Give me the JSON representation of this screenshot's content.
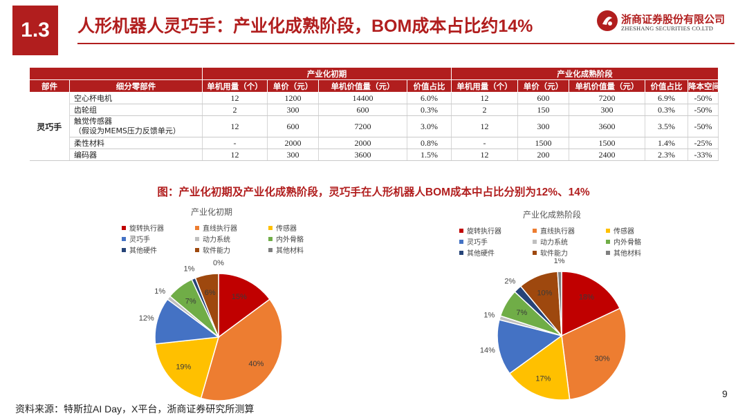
{
  "header": {
    "section": "1.3",
    "title": "人形机器人灵巧手：产业化成熟阶段，BOM成本占比约14%",
    "logo_cn": "浙商证券股份有限公司",
    "logo_en": "ZHESHANG SECURITIES CO.LTD"
  },
  "table": {
    "group_headers": [
      "产业化初期",
      "产业化成熟阶段"
    ],
    "columns": [
      "部件",
      "细分零部件",
      "单机用量（个）",
      "单价（元）",
      "单机价值量（元）",
      "价值占比",
      "单机用量（个）",
      "单价（元）",
      "单机价值量（元）",
      "价值占比",
      "降本空间"
    ],
    "category": "灵巧手",
    "rows": [
      {
        "part": "空心杯电机",
        "cells": [
          "12",
          "1200",
          "14400",
          "6.0%",
          "12",
          "600",
          "7200",
          "6.9%",
          "-50%"
        ]
      },
      {
        "part": "齿轮组",
        "cells": [
          "2",
          "300",
          "600",
          "0.3%",
          "2",
          "150",
          "300",
          "0.3%",
          "-50%"
        ]
      },
      {
        "part": "触觉传感器",
        "part_note": "（假设为MEMS压力反馈单元）",
        "cells": [
          "12",
          "600",
          "7200",
          "3.0%",
          "12",
          "300",
          "3600",
          "3.5%",
          "-50%"
        ]
      },
      {
        "part": "柔性材料",
        "cells": [
          "-",
          "2000",
          "2000",
          "0.8%",
          "-",
          "1500",
          "1500",
          "1.4%",
          "-25%"
        ]
      },
      {
        "part": "编码器",
        "cells": [
          "12",
          "300",
          "3600",
          "1.5%",
          "12",
          "200",
          "2400",
          "2.3%",
          "-33%"
        ]
      }
    ]
  },
  "figure_title": "图：产业化初期及产业化成熟阶段，灵巧手在人形机器人BOM成本中占比分别为12%、14%",
  "chart_data": [
    {
      "type": "pie",
      "title": "产业化初期",
      "legend": [
        "旋转执行器",
        "直线执行器",
        "传感器",
        "灵巧手",
        "动力系统",
        "内外骨骼",
        "其他硬件",
        "软件能力",
        "其他材料"
      ],
      "colors": [
        "#c00000",
        "#ed7d31",
        "#ffc000",
        "#4472c4",
        "#bfbfbf",
        "#70ad47",
        "#264478",
        "#9e480e",
        "#7f7f7f"
      ],
      "values": [
        15,
        40,
        19,
        12,
        1,
        7,
        1,
        6,
        0
      ],
      "labels": [
        "15%",
        "40%",
        "19%",
        "12%",
        "1%",
        "7%",
        "1%",
        "6%",
        "0%"
      ]
    },
    {
      "type": "pie",
      "title": "产业化成熟阶段",
      "legend": [
        "旋转执行器",
        "直线执行器",
        "传感器",
        "灵巧手",
        "动力系统",
        "内外骨骼",
        "其他硬件",
        "软件能力",
        "其他材料"
      ],
      "colors": [
        "#c00000",
        "#ed7d31",
        "#ffc000",
        "#4472c4",
        "#bfbfbf",
        "#70ad47",
        "#264478",
        "#9e480e",
        "#7f7f7f"
      ],
      "values": [
        18,
        30,
        17,
        14,
        1,
        7,
        2,
        10,
        1
      ],
      "labels": [
        "18%",
        "30%",
        "17%",
        "14%",
        "1%",
        "7%",
        "2%",
        "10%",
        "1%"
      ]
    }
  ],
  "footer": {
    "source": "资料来源：特斯拉AI Day，X平台，浙商证券研究所测算",
    "page": "9"
  }
}
